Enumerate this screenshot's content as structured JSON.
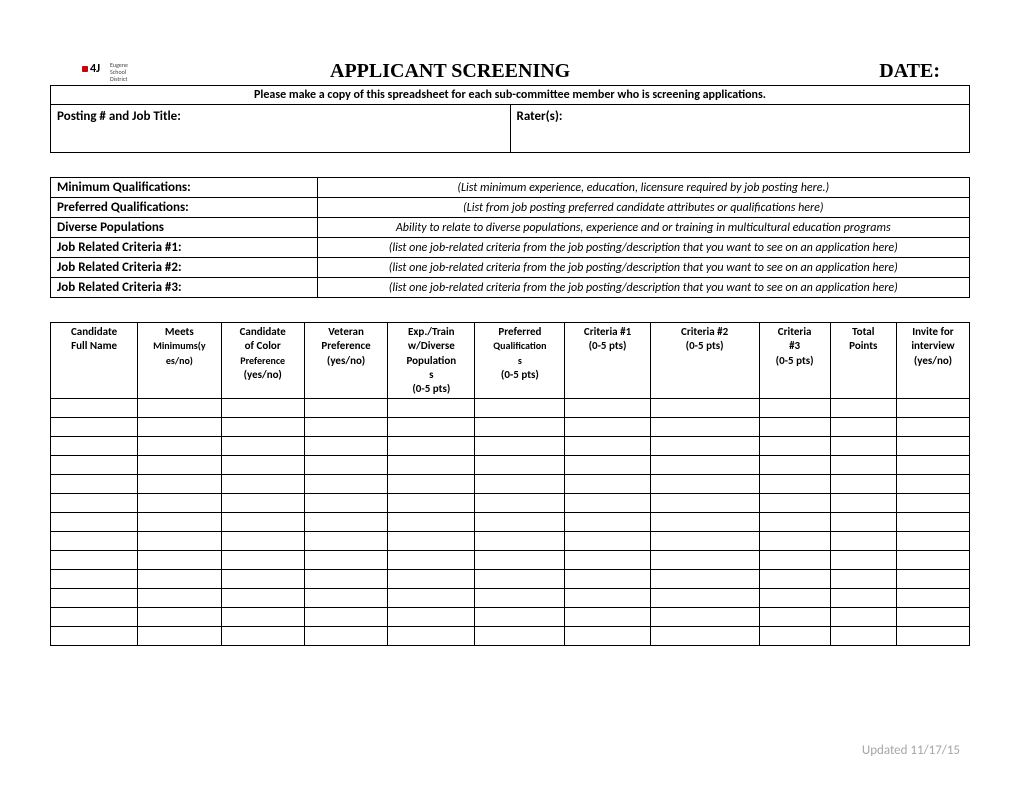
{
  "header": {
    "logo_main": "4J",
    "logo_sub": "Eugene\nSchool\nDistrict",
    "title": "APPLICANT SCREENING",
    "date_label": "DATE:"
  },
  "instruction": "Please make a copy of this spreadsheet for each sub-committee member who is screening applications.",
  "info": {
    "posting_label": "Posting # and Job Title:",
    "raters_label": "Rater(s):"
  },
  "qualifications": [
    {
      "label": "Minimum Qualifications:",
      "desc": "(List minimum experience, education, licensure required by job posting here.)"
    },
    {
      "label": "Preferred Qualifications:",
      "desc": "(List from job posting preferred candidate attributes or qualifications here)"
    },
    {
      "label": "Diverse Populations",
      "desc": "Ability to relate to diverse populations, experience and or training in multicultural education programs"
    },
    {
      "label": "Job Related Criteria #1:",
      "desc": "(list one job-related criteria from the job posting/description that you want to see on an application here)"
    },
    {
      "label": "Job Related Criteria #2:",
      "desc": "(list one job-related criteria from the job posting/description that you want to see on an application here)"
    },
    {
      "label": "Job Related Criteria #3:",
      "desc": "(list one job-related criteria from the job posting/description that you want to see on an application here)"
    }
  ],
  "candidate_columns": [
    {
      "line1": "Candidate",
      "line2": "Full Name"
    },
    {
      "line1": "Meets",
      "line2": "Minimums(y",
      "line3": "es/no)"
    },
    {
      "line1": "Candidate",
      "line2": "of Color",
      "line3": "Preference",
      "line4": "(yes/no)"
    },
    {
      "line1": "Veteran",
      "line2": "Preference",
      "line3": "(yes/no)"
    },
    {
      "line1": "Exp./Train",
      "line2": "w/Diverse",
      "line3": "Population",
      "line4": "s",
      "line5": "(0-5 pts)"
    },
    {
      "line1": "Preferred",
      "line2": "Qualification",
      "line3": "s",
      "line4": "(0-5 pts)"
    },
    {
      "line1": "Criteria #1",
      "line2": "(0-5 pts)"
    },
    {
      "line1": "Criteria #2",
      "line2": "(0-5 pts)"
    },
    {
      "line1": "Criteria",
      "line2": "#3",
      "line3": "(0-5 pts)"
    },
    {
      "line1": "Total",
      "line2": "Points"
    },
    {
      "line1": "Invite for",
      "line2": "interview",
      "line3": "(yes/no)"
    }
  ],
  "row_count": 13,
  "footer": "Updated 11/17/15",
  "colors": {
    "text": "#000000",
    "border": "#000000",
    "footer_text": "#a6a6a6",
    "background": "#ffffff",
    "logo_accent": "#cc0000"
  },
  "fonts": {
    "title_family": "Times New Roman",
    "body_family": "Calibri",
    "title_size": 20,
    "body_size": 12
  }
}
